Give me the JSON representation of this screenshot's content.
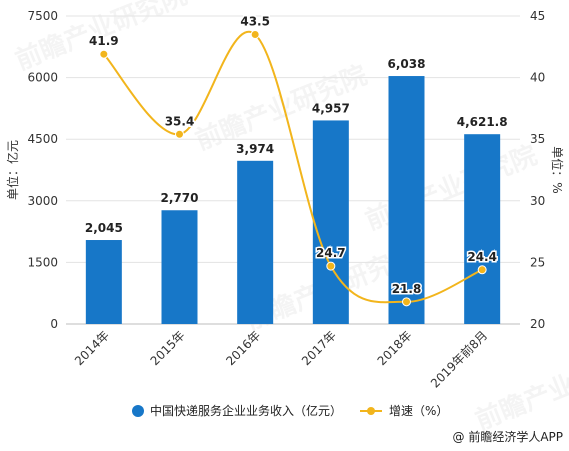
{
  "chart_data": {
    "type": "bar",
    "categories": [
      "2014年",
      "2015年",
      "2016年",
      "2017年",
      "2018年",
      "2019年前8月"
    ],
    "series": [
      {
        "name": "中国快递服务企业业务收入（亿元）",
        "type": "bar",
        "axis": "left",
        "color": "#1777c8",
        "values": [
          2045,
          2770,
          3974,
          4957,
          6038,
          4621.8
        ],
        "labels": [
          "2,045",
          "2,770",
          "3,974",
          "4,957",
          "6,038",
          "4,621.8"
        ]
      },
      {
        "name": "增速（%）",
        "type": "line",
        "axis": "right",
        "color": "#f2b51c",
        "values": [
          41.9,
          35.4,
          43.5,
          24.7,
          21.8,
          24.4
        ],
        "labels": [
          "41.9",
          "35.4",
          "43.5",
          "24.7",
          "21.8",
          "24.4"
        ]
      }
    ],
    "y_left": {
      "label": "单位：亿元",
      "min": 0,
      "max": 7500,
      "ticks": [
        0,
        1500,
        3000,
        4500,
        6000,
        7500
      ],
      "tick_labels": [
        "0",
        "1500",
        "3000",
        "4500",
        "6000",
        "7500"
      ]
    },
    "y_right": {
      "label": "单位：%",
      "min": 20,
      "max": 45,
      "ticks": [
        20,
        25,
        30,
        35,
        40,
        45
      ],
      "tick_labels": [
        "20",
        "25",
        "30",
        "35",
        "40",
        "45"
      ]
    },
    "grid": true,
    "legend_position": "bottom"
  },
  "source": "@ 前瞻经济学人APP",
  "watermark": "前瞻产业研究院"
}
